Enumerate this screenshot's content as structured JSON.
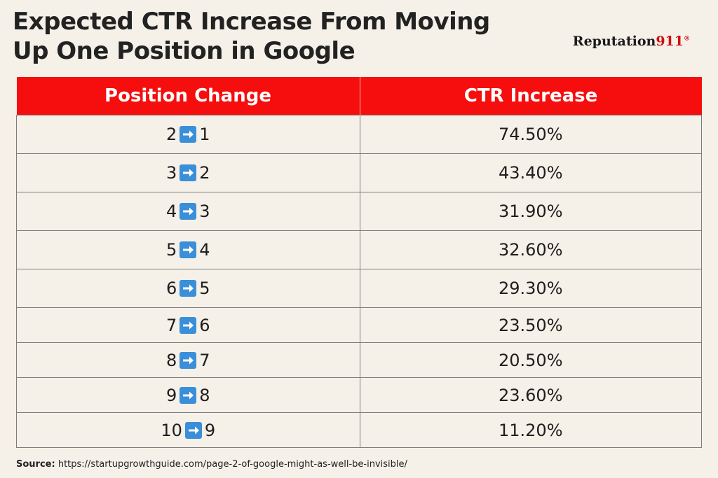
{
  "title_line1": "Expected CTR Increase From Moving",
  "title_line2": "Up One Position in Google",
  "brand": {
    "name": "Reputation",
    "number": "911",
    "mark": "®"
  },
  "colors": {
    "header_bg": "#f60d0d",
    "arrow": "#3a8fd8",
    "background": "#f5f0e8"
  },
  "chart_data": {
    "type": "table",
    "columns": [
      "Position Change",
      "CTR Increase"
    ],
    "rows": [
      {
        "from": "2",
        "to": "1",
        "ctr": "74.50%"
      },
      {
        "from": "3",
        "to": "2",
        "ctr": "43.40%"
      },
      {
        "from": "4",
        "to": "3",
        "ctr": "31.90%"
      },
      {
        "from": "5",
        "to": "4",
        "ctr": "32.60%"
      },
      {
        "from": "6",
        "to": "5",
        "ctr": "29.30%"
      },
      {
        "from": "7",
        "to": "6",
        "ctr": "23.50%"
      },
      {
        "from": "8",
        "to": "7",
        "ctr": "20.50%"
      },
      {
        "from": "9",
        "to": "8",
        "ctr": "23.60%"
      },
      {
        "from": "10",
        "to": "9",
        "ctr": "11.20%"
      }
    ]
  },
  "source": {
    "label": "Source:",
    "text": "https://startupgrowthguide.com/page-2-of-google-might-as-well-be-invisible/"
  }
}
